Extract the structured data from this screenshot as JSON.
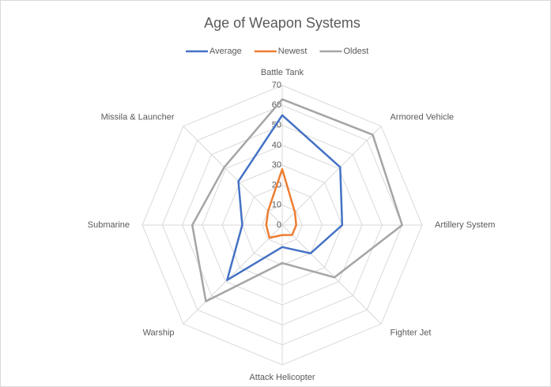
{
  "chart_data": {
    "type": "radar",
    "title": "Age of Weapon Systems",
    "categories": [
      "Battle Tank",
      "Armored Vehicle",
      "Artillery System",
      "Fighter Jet",
      "Attack Helicopter",
      "Warship",
      "Submarine",
      "Missila & Launcher"
    ],
    "series": [
      {
        "name": "Average",
        "color": "#4472c4",
        "values": [
          55,
          41,
          30,
          20,
          11,
          39,
          20,
          31
        ]
      },
      {
        "name": "Newest",
        "color": "#ed7d31",
        "values": [
          28,
          9,
          7,
          7,
          5,
          9,
          8,
          10
        ]
      },
      {
        "name": "Oldest",
        "color": "#a5a5a5",
        "values": [
          63,
          64,
          60,
          37,
          19,
          54,
          45,
          41
        ]
      }
    ],
    "ylim": [
      0,
      70
    ],
    "yticks": [
      0,
      10,
      20,
      30,
      40,
      50,
      60,
      70
    ],
    "grid": true,
    "legend": "top"
  }
}
